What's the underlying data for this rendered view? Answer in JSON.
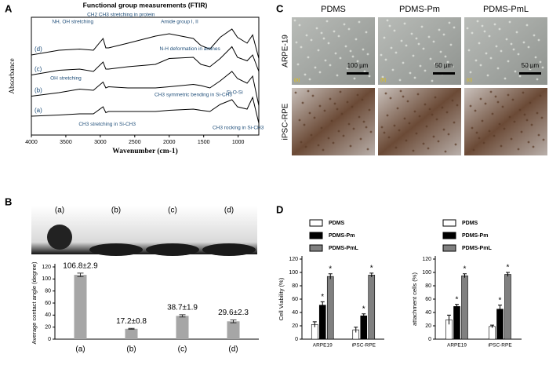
{
  "panels": [
    "A",
    "B",
    "C",
    "D"
  ],
  "micrographs": {
    "columns": [
      "PDMS",
      "PDMS-Pm",
      "PDMS-PmL"
    ],
    "rows": [
      "ARPE-19",
      "iPSC-RPE"
    ],
    "scale_bars": [
      "100 µm",
      "50 µm",
      "50 µm"
    ],
    "tags": [
      "(a)",
      "(b)",
      "(c)"
    ]
  },
  "droplet_photos": [
    "(a)",
    "(b)",
    "(c)",
    "(d)"
  ],
  "chart_data": [
    {
      "type": "line",
      "title": "Functional group measurements (FTIR)",
      "x_label": "Wavenumber (cm-1)",
      "y_label": "Absorbance",
      "x": [
        4000,
        3600,
        3300,
        3100,
        2960,
        2920,
        2880,
        2600,
        2200,
        2000,
        1650,
        1540,
        1410,
        1260,
        1090,
        1010,
        870,
        790,
        700
      ],
      "xlim": [
        4000,
        700
      ],
      "xticks": [
        4000,
        3500,
        3000,
        2500,
        2000,
        1500,
        1000
      ],
      "ylim": [
        0,
        10
      ],
      "series": [
        {
          "name": "(a)",
          "color": "#000000",
          "values": [
            1.6,
            1.7,
            1.8,
            1.8,
            2.4,
            1.9,
            2.0,
            2.0,
            2.0,
            2.1,
            2.2,
            2.1,
            2.0,
            2.6,
            3.0,
            2.4,
            2.2,
            3.2,
            1.0
          ]
        },
        {
          "name": "(b)",
          "color": "#000000",
          "values": [
            3.3,
            3.6,
            3.9,
            3.8,
            4.5,
            4.0,
            4.1,
            4.0,
            4.0,
            4.1,
            4.3,
            4.2,
            4.0,
            4.6,
            5.4,
            4.8,
            4.4,
            5.0,
            2.5
          ]
        },
        {
          "name": "(c)",
          "color": "#000000",
          "values": [
            5.1,
            5.5,
            5.6,
            5.4,
            6.2,
            5.6,
            5.6,
            5.8,
            6.0,
            6.5,
            6.6,
            6.0,
            5.8,
            6.5,
            7.5,
            6.6,
            6.3,
            6.8,
            5.4
          ]
        },
        {
          "name": "(d)",
          "color": "#000000",
          "values": [
            6.8,
            7.2,
            7.3,
            7.2,
            8.2,
            7.4,
            7.4,
            7.8,
            8.4,
            8.6,
            8.2,
            7.6,
            7.3,
            8.3,
            9.0,
            8.3,
            7.8,
            8.5,
            6.5
          ]
        }
      ],
      "annotations": [
        "NH, OH stretching",
        "CH2 CH3 stretching in protein",
        "Amide group I, II",
        "N-H deformation in amines",
        "OH stretching",
        "CH3 symmetric bending in Si-CH3",
        "Si-O-Si",
        "CH3 stretching in Si-CH3",
        "CH3 rocking in Si-CH3"
      ]
    },
    {
      "type": "bar",
      "y_label": "Average contact angle (degree)",
      "categories": [
        "(a)",
        "(b)",
        "(c)",
        "(d)"
      ],
      "values": [
        106.8,
        17.2,
        38.7,
        29.6
      ],
      "errors": [
        2.9,
        0.8,
        1.9,
        2.3
      ],
      "value_labels": [
        "106.8±2.9",
        "17.2±0.8",
        "38.7±1.9",
        "29.6±2.3"
      ],
      "color": "#a6a6a6",
      "ylim": [
        0,
        120
      ],
      "yticks": [
        0,
        20,
        40,
        60,
        80,
        100,
        120
      ]
    },
    {
      "type": "grouped_bar",
      "y_label": "Cell Viability (%)",
      "categories": [
        "ARPE19",
        "iPSC-RPE"
      ],
      "ylim": [
        0,
        120
      ],
      "yticks": [
        0,
        20,
        40,
        60,
        80,
        100,
        120
      ],
      "series": [
        {
          "name": "PDMS",
          "color": "#ffffff",
          "values": [
            22,
            14
          ],
          "errors": [
            4,
            4
          ]
        },
        {
          "name": "PDMS-Pm",
          "color": "#000000",
          "values": [
            51,
            35
          ],
          "errors": [
            5,
            3
          ],
          "annotations": [
            "*",
            "*"
          ]
        },
        {
          "name": "PDMS-PmL",
          "color": "#808080",
          "values": [
            94,
            96
          ],
          "errors": [
            4,
            3
          ],
          "annotations": [
            "*",
            "*"
          ]
        }
      ]
    },
    {
      "type": "grouped_bar",
      "y_label": "attachment cells (%)",
      "categories": [
        "ARPE19",
        "iPSC-RPE"
      ],
      "ylim": [
        0,
        120
      ],
      "yticks": [
        0,
        20,
        40,
        60,
        80,
        100,
        120
      ],
      "series": [
        {
          "name": "PDMS",
          "color": "#ffffff",
          "values": [
            29,
            19
          ],
          "errors": [
            7,
            2
          ]
        },
        {
          "name": "PDMS-Pm",
          "color": "#000000",
          "values": [
            49,
            45
          ],
          "errors": [
            3,
            6
          ],
          "annotations": [
            "*",
            "*"
          ]
        },
        {
          "name": "PDMS-PmL",
          "color": "#808080",
          "values": [
            95,
            97
          ],
          "errors": [
            3,
            3
          ],
          "annotations": [
            "*",
            "*"
          ]
        }
      ]
    }
  ]
}
